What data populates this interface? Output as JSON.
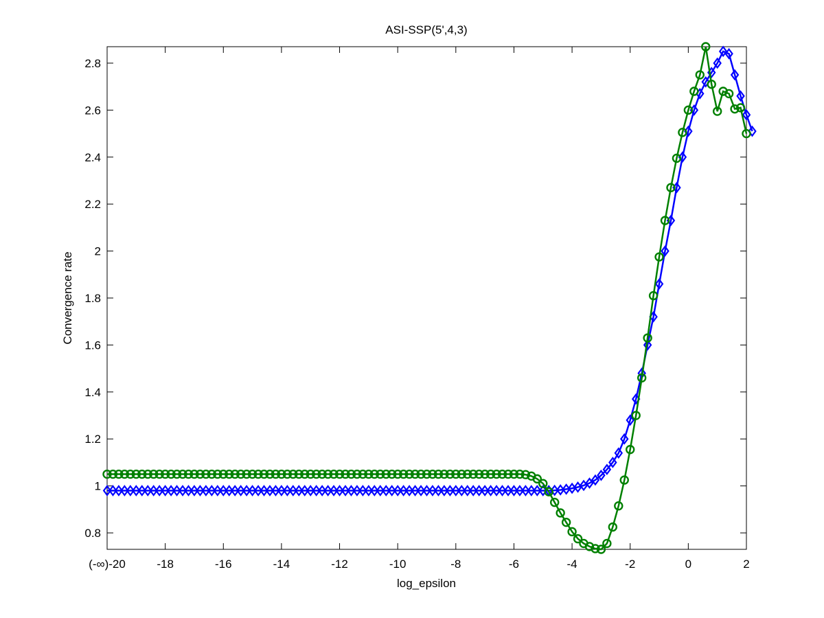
{
  "chart_data": {
    "type": "line",
    "title": "ASI-SSP(5',4,3)",
    "xlabel": "log_epsilon",
    "ylabel": "Convergence rate",
    "xlim": [
      -20,
      2
    ],
    "ylim": [
      0.73,
      2.87
    ],
    "xticks": [
      {
        "value": -20,
        "label": "(-∞)-20"
      },
      {
        "value": -18,
        "label": "-18"
      },
      {
        "value": -16,
        "label": "-16"
      },
      {
        "value": -14,
        "label": "-14"
      },
      {
        "value": -12,
        "label": "-12"
      },
      {
        "value": -10,
        "label": "-10"
      },
      {
        "value": -8,
        "label": "-8"
      },
      {
        "value": -6,
        "label": "-6"
      },
      {
        "value": -4,
        "label": "-4"
      },
      {
        "value": -2,
        "label": "-2"
      },
      {
        "value": 0,
        "label": "0"
      },
      {
        "value": 2,
        "label": "2"
      }
    ],
    "yticks": [
      {
        "value": 0.8,
        "label": "0.8"
      },
      {
        "value": 1.0,
        "label": "1"
      },
      {
        "value": 1.2,
        "label": "1.2"
      },
      {
        "value": 1.4,
        "label": "1.4"
      },
      {
        "value": 1.6,
        "label": "1.6"
      },
      {
        "value": 1.8,
        "label": "1.8"
      },
      {
        "value": 2.0,
        "label": "2"
      },
      {
        "value": 2.2,
        "label": "2.2"
      },
      {
        "value": 2.4,
        "label": "2.4"
      },
      {
        "value": 2.6,
        "label": "2.6"
      },
      {
        "value": 2.8,
        "label": "2.8"
      }
    ],
    "grid": false,
    "series": [
      {
        "color": "#0000ff",
        "marker": "diamond",
        "points": [
          [
            -20.0,
            0.98
          ],
          [
            -19.8,
            0.98
          ],
          [
            -19.6,
            0.98
          ],
          [
            -19.4,
            0.98
          ],
          [
            -19.2,
            0.98
          ],
          [
            -19.0,
            0.98
          ],
          [
            -18.8,
            0.98
          ],
          [
            -18.6,
            0.98
          ],
          [
            -18.4,
            0.98
          ],
          [
            -18.2,
            0.98
          ],
          [
            -18.0,
            0.98
          ],
          [
            -17.8,
            0.98
          ],
          [
            -17.6,
            0.98
          ],
          [
            -17.4,
            0.98
          ],
          [
            -17.2,
            0.98
          ],
          [
            -17.0,
            0.98
          ],
          [
            -16.8,
            0.98
          ],
          [
            -16.6,
            0.98
          ],
          [
            -16.4,
            0.98
          ],
          [
            -16.2,
            0.98
          ],
          [
            -16.0,
            0.98
          ],
          [
            -15.8,
            0.98
          ],
          [
            -15.6,
            0.98
          ],
          [
            -15.4,
            0.98
          ],
          [
            -15.2,
            0.98
          ],
          [
            -15.0,
            0.98
          ],
          [
            -14.8,
            0.98
          ],
          [
            -14.6,
            0.98
          ],
          [
            -14.4,
            0.98
          ],
          [
            -14.2,
            0.98
          ],
          [
            -14.0,
            0.98
          ],
          [
            -13.8,
            0.98
          ],
          [
            -13.6,
            0.98
          ],
          [
            -13.4,
            0.98
          ],
          [
            -13.2,
            0.98
          ],
          [
            -13.0,
            0.98
          ],
          [
            -12.8,
            0.98
          ],
          [
            -12.6,
            0.98
          ],
          [
            -12.4,
            0.98
          ],
          [
            -12.2,
            0.98
          ],
          [
            -12.0,
            0.98
          ],
          [
            -11.8,
            0.98
          ],
          [
            -11.6,
            0.98
          ],
          [
            -11.4,
            0.98
          ],
          [
            -11.2,
            0.98
          ],
          [
            -11.0,
            0.98
          ],
          [
            -10.8,
            0.98
          ],
          [
            -10.6,
            0.98
          ],
          [
            -10.4,
            0.98
          ],
          [
            -10.2,
            0.98
          ],
          [
            -10.0,
            0.98
          ],
          [
            -9.8,
            0.98
          ],
          [
            -9.6,
            0.98
          ],
          [
            -9.4,
            0.98
          ],
          [
            -9.2,
            0.98
          ],
          [
            -9.0,
            0.98
          ],
          [
            -8.8,
            0.98
          ],
          [
            -8.6,
            0.98
          ],
          [
            -8.4,
            0.98
          ],
          [
            -8.2,
            0.98
          ],
          [
            -8.0,
            0.98
          ],
          [
            -7.8,
            0.98
          ],
          [
            -7.6,
            0.98
          ],
          [
            -7.4,
            0.98
          ],
          [
            -7.2,
            0.98
          ],
          [
            -7.0,
            0.98
          ],
          [
            -6.8,
            0.98
          ],
          [
            -6.6,
            0.98
          ],
          [
            -6.4,
            0.98
          ],
          [
            -6.2,
            0.98
          ],
          [
            -6.0,
            0.98
          ],
          [
            -5.8,
            0.98
          ],
          [
            -5.6,
            0.98
          ],
          [
            -5.4,
            0.98
          ],
          [
            -5.2,
            0.98
          ],
          [
            -5.0,
            0.98
          ],
          [
            -4.8,
            0.98
          ],
          [
            -4.6,
            0.981
          ],
          [
            -4.4,
            0.983
          ],
          [
            -4.2,
            0.986
          ],
          [
            -4.0,
            0.99
          ],
          [
            -3.8,
            0.995
          ],
          [
            -3.6,
            1.002
          ],
          [
            -3.4,
            1.012
          ],
          [
            -3.2,
            1.025
          ],
          [
            -3.0,
            1.045
          ],
          [
            -2.8,
            1.07
          ],
          [
            -2.6,
            1.1
          ],
          [
            -2.4,
            1.14
          ],
          [
            -2.2,
            1.2
          ],
          [
            -2.0,
            1.28
          ],
          [
            -1.8,
            1.37
          ],
          [
            -1.6,
            1.48
          ],
          [
            -1.4,
            1.6
          ],
          [
            -1.2,
            1.72
          ],
          [
            -1.0,
            1.86
          ],
          [
            -0.8,
            2.0
          ],
          [
            -0.6,
            2.13
          ],
          [
            -0.4,
            2.27
          ],
          [
            -0.2,
            2.4
          ],
          [
            0.0,
            2.51
          ],
          [
            0.2,
            2.6
          ],
          [
            0.4,
            2.67
          ],
          [
            0.6,
            2.72
          ],
          [
            0.8,
            2.76
          ],
          [
            1.0,
            2.8
          ],
          [
            1.2,
            2.85
          ],
          [
            1.4,
            2.84
          ],
          [
            1.6,
            2.75
          ],
          [
            1.8,
            2.66
          ],
          [
            2.0,
            2.58
          ],
          [
            2.2,
            2.51
          ]
        ]
      },
      {
        "color": "#008000",
        "marker": "circle",
        "points": [
          [
            -20.0,
            1.05
          ],
          [
            -19.8,
            1.05
          ],
          [
            -19.6,
            1.05
          ],
          [
            -19.4,
            1.05
          ],
          [
            -19.2,
            1.05
          ],
          [
            -19.0,
            1.05
          ],
          [
            -18.8,
            1.05
          ],
          [
            -18.6,
            1.05
          ],
          [
            -18.4,
            1.05
          ],
          [
            -18.2,
            1.05
          ],
          [
            -18.0,
            1.05
          ],
          [
            -17.8,
            1.05
          ],
          [
            -17.6,
            1.05
          ],
          [
            -17.4,
            1.05
          ],
          [
            -17.2,
            1.05
          ],
          [
            -17.0,
            1.05
          ],
          [
            -16.8,
            1.05
          ],
          [
            -16.6,
            1.05
          ],
          [
            -16.4,
            1.05
          ],
          [
            -16.2,
            1.05
          ],
          [
            -16.0,
            1.05
          ],
          [
            -15.8,
            1.05
          ],
          [
            -15.6,
            1.05
          ],
          [
            -15.4,
            1.05
          ],
          [
            -15.2,
            1.05
          ],
          [
            -15.0,
            1.05
          ],
          [
            -14.8,
            1.05
          ],
          [
            -14.6,
            1.05
          ],
          [
            -14.4,
            1.05
          ],
          [
            -14.2,
            1.05
          ],
          [
            -14.0,
            1.05
          ],
          [
            -13.8,
            1.05
          ],
          [
            -13.6,
            1.05
          ],
          [
            -13.4,
            1.05
          ],
          [
            -13.2,
            1.05
          ],
          [
            -13.0,
            1.05
          ],
          [
            -12.8,
            1.05
          ],
          [
            -12.6,
            1.05
          ],
          [
            -12.4,
            1.05
          ],
          [
            -12.2,
            1.05
          ],
          [
            -12.0,
            1.05
          ],
          [
            -11.8,
            1.05
          ],
          [
            -11.6,
            1.05
          ],
          [
            -11.4,
            1.05
          ],
          [
            -11.2,
            1.05
          ],
          [
            -11.0,
            1.05
          ],
          [
            -10.8,
            1.05
          ],
          [
            -10.6,
            1.05
          ],
          [
            -10.4,
            1.05
          ],
          [
            -10.2,
            1.05
          ],
          [
            -10.0,
            1.05
          ],
          [
            -9.8,
            1.05
          ],
          [
            -9.6,
            1.05
          ],
          [
            -9.4,
            1.05
          ],
          [
            -9.2,
            1.05
          ],
          [
            -9.0,
            1.05
          ],
          [
            -8.8,
            1.05
          ],
          [
            -8.6,
            1.05
          ],
          [
            -8.4,
            1.05
          ],
          [
            -8.2,
            1.05
          ],
          [
            -8.0,
            1.05
          ],
          [
            -7.8,
            1.05
          ],
          [
            -7.6,
            1.05
          ],
          [
            -7.4,
            1.05
          ],
          [
            -7.2,
            1.05
          ],
          [
            -7.0,
            1.05
          ],
          [
            -6.8,
            1.05
          ],
          [
            -6.6,
            1.05
          ],
          [
            -6.4,
            1.05
          ],
          [
            -6.2,
            1.05
          ],
          [
            -6.0,
            1.05
          ],
          [
            -5.8,
            1.05
          ],
          [
            -5.6,
            1.048
          ],
          [
            -5.4,
            1.042
          ],
          [
            -5.2,
            1.03
          ],
          [
            -5.0,
            1.01
          ],
          [
            -4.8,
            0.975
          ],
          [
            -4.6,
            0.93
          ],
          [
            -4.4,
            0.885
          ],
          [
            -4.2,
            0.845
          ],
          [
            -4.0,
            0.805
          ],
          [
            -3.8,
            0.775
          ],
          [
            -3.6,
            0.755
          ],
          [
            -3.4,
            0.742
          ],
          [
            -3.2,
            0.733
          ],
          [
            -3.0,
            0.73
          ],
          [
            -2.8,
            0.755
          ],
          [
            -2.6,
            0.825
          ],
          [
            -2.4,
            0.915
          ],
          [
            -2.2,
            1.025
          ],
          [
            -2.0,
            1.155
          ],
          [
            -1.8,
            1.3
          ],
          [
            -1.6,
            1.46
          ],
          [
            -1.4,
            1.63
          ],
          [
            -1.2,
            1.81
          ],
          [
            -1.0,
            1.975
          ],
          [
            -0.8,
            2.13
          ],
          [
            -0.6,
            2.27
          ],
          [
            -0.4,
            2.395
          ],
          [
            -0.2,
            2.505
          ],
          [
            0.0,
            2.6
          ],
          [
            0.2,
            2.68
          ],
          [
            0.4,
            2.75
          ],
          [
            0.6,
            2.87
          ],
          [
            0.8,
            2.71
          ],
          [
            1.0,
            2.595
          ],
          [
            1.2,
            2.68
          ],
          [
            1.4,
            2.67
          ],
          [
            1.6,
            2.605
          ],
          [
            1.8,
            2.61
          ],
          [
            2.0,
            2.5
          ]
        ]
      }
    ]
  }
}
